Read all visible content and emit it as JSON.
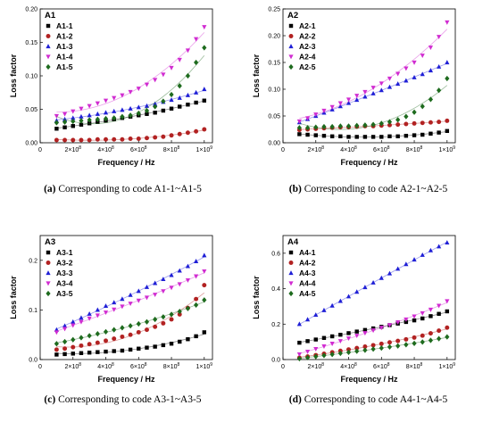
{
  "chart_data": [
    {
      "type": "scatter",
      "panel_title": "A1",
      "caption_letter": "(a)",
      "caption_text": " Corresponding to code A1-1~A1-5",
      "xlabel": "Frequency / Hz",
      "ylabel": "Loss factor",
      "xlim": [
        0,
        1050000000
      ],
      "ylim": [
        0,
        0.2
      ],
      "yticks": [
        "0.00",
        "0.05",
        "0.10",
        "0.15",
        "0.20"
      ],
      "ytick_values": [
        0,
        0.05,
        0.1,
        0.15,
        0.2
      ],
      "legend_placement": "top-left",
      "x": [
        100000000,
        150000000,
        200000000,
        250000000,
        300000000,
        350000000,
        400000000,
        450000000,
        500000000,
        550000000,
        600000000,
        650000000,
        700000000,
        750000000,
        800000000,
        850000000,
        900000000,
        950000000,
        1000000000
      ],
      "series": [
        {
          "name": "A1-1",
          "color": "#000000",
          "marker": "square",
          "values": [
            0.021,
            0.023,
            0.025,
            0.027,
            0.029,
            0.031,
            0.033,
            0.035,
            0.037,
            0.039,
            0.041,
            0.043,
            0.045,
            0.048,
            0.051,
            0.054,
            0.057,
            0.06,
            0.063
          ]
        },
        {
          "name": "A1-2",
          "color": "#b22222",
          "marker": "circle",
          "values": [
            0.004,
            0.004,
            0.004,
            0.004,
            0.004,
            0.005,
            0.005,
            0.005,
            0.005,
            0.006,
            0.006,
            0.007,
            0.008,
            0.009,
            0.011,
            0.013,
            0.015,
            0.017,
            0.02
          ]
        },
        {
          "name": "A1-3",
          "color": "#1f1fd6",
          "marker": "triangle-up",
          "values": [
            0.033,
            0.035,
            0.037,
            0.039,
            0.041,
            0.043,
            0.045,
            0.047,
            0.049,
            0.051,
            0.053,
            0.055,
            0.058,
            0.061,
            0.064,
            0.067,
            0.071,
            0.075,
            0.08
          ]
        },
        {
          "name": "A1-4",
          "color": "#d12cd1",
          "marker": "triangle-down",
          "values": [
            0.04,
            0.043,
            0.047,
            0.051,
            0.055,
            0.059,
            0.063,
            0.067,
            0.071,
            0.076,
            0.081,
            0.087,
            0.094,
            0.102,
            0.112,
            0.124,
            0.138,
            0.155,
            0.173
          ]
        },
        {
          "name": "A1-5",
          "color": "#1e6b1e",
          "marker": "diamond",
          "values": [
            0.03,
            0.031,
            0.032,
            0.033,
            0.034,
            0.035,
            0.036,
            0.037,
            0.039,
            0.041,
            0.044,
            0.048,
            0.054,
            0.062,
            0.072,
            0.085,
            0.1,
            0.12,
            0.142
          ]
        }
      ]
    },
    {
      "type": "scatter",
      "panel_title": "A2",
      "caption_letter": "(b)",
      "caption_text": " Corresponding to code A2-1~A2-5",
      "xlabel": "Frequency / Hz",
      "ylabel": "Loss factor",
      "xlim": [
        0,
        1050000000
      ],
      "ylim": [
        0,
        0.25
      ],
      "yticks": [
        "0.00",
        "0.05",
        "0.10",
        "0.15",
        "0.20",
        "0.25"
      ],
      "ytick_values": [
        0,
        0.05,
        0.1,
        0.15,
        0.2,
        0.25
      ],
      "legend_placement": "top-left",
      "x": [
        100000000,
        150000000,
        200000000,
        250000000,
        300000000,
        350000000,
        400000000,
        450000000,
        500000000,
        550000000,
        600000000,
        650000000,
        700000000,
        750000000,
        800000000,
        850000000,
        900000000,
        950000000,
        1000000000
      ],
      "series": [
        {
          "name": "A2-1",
          "color": "#000000",
          "marker": "square",
          "values": [
            0.016,
            0.015,
            0.014,
            0.013,
            0.012,
            0.012,
            0.011,
            0.011,
            0.011,
            0.011,
            0.011,
            0.012,
            0.012,
            0.013,
            0.014,
            0.015,
            0.017,
            0.019,
            0.022
          ]
        },
        {
          "name": "A2-2",
          "color": "#b22222",
          "marker": "circle",
          "values": [
            0.024,
            0.025,
            0.026,
            0.027,
            0.028,
            0.029,
            0.029,
            0.03,
            0.031,
            0.031,
            0.032,
            0.033,
            0.034,
            0.035,
            0.036,
            0.037,
            0.038,
            0.039,
            0.041
          ]
        },
        {
          "name": "A2-3",
          "color": "#1f1fd6",
          "marker": "triangle-up",
          "values": [
            0.038,
            0.044,
            0.05,
            0.056,
            0.062,
            0.068,
            0.074,
            0.08,
            0.086,
            0.092,
            0.098,
            0.104,
            0.11,
            0.116,
            0.122,
            0.128,
            0.135,
            0.142,
            0.15
          ]
        },
        {
          "name": "A2-4",
          "color": "#d12cd1",
          "marker": "triangle-down",
          "values": [
            0.04,
            0.046,
            0.053,
            0.06,
            0.067,
            0.074,
            0.081,
            0.088,
            0.095,
            0.103,
            0.111,
            0.12,
            0.129,
            0.139,
            0.15,
            0.163,
            0.178,
            0.198,
            0.225
          ]
        },
        {
          "name": "A2-5",
          "color": "#1e6b1e",
          "marker": "diamond",
          "values": [
            0.028,
            0.028,
            0.029,
            0.03,
            0.03,
            0.031,
            0.031,
            0.032,
            0.033,
            0.034,
            0.036,
            0.039,
            0.043,
            0.049,
            0.057,
            0.068,
            0.081,
            0.098,
            0.12
          ]
        }
      ]
    },
    {
      "type": "scatter",
      "panel_title": "A3",
      "caption_letter": "(c)",
      "caption_text": " Corresponding to code A3-1~A3-5",
      "xlabel": "Frequency / Hz",
      "ylabel": "Loss factor",
      "xlim": [
        0,
        1050000000
      ],
      "ylim": [
        0,
        0.25
      ],
      "yticks": [
        "0.0",
        "0.1",
        "0.2"
      ],
      "ytick_values": [
        0,
        0.1,
        0.2
      ],
      "legend_placement": "top-left",
      "x": [
        100000000,
        150000000,
        200000000,
        250000000,
        300000000,
        350000000,
        400000000,
        450000000,
        500000000,
        550000000,
        600000000,
        650000000,
        700000000,
        750000000,
        800000000,
        850000000,
        900000000,
        950000000,
        1000000000
      ],
      "series": [
        {
          "name": "A3-1",
          "color": "#000000",
          "marker": "square",
          "values": [
            0.01,
            0.011,
            0.012,
            0.013,
            0.014,
            0.015,
            0.016,
            0.017,
            0.018,
            0.02,
            0.022,
            0.024,
            0.026,
            0.029,
            0.032,
            0.036,
            0.041,
            0.047,
            0.055
          ]
        },
        {
          "name": "A3-2",
          "color": "#b22222",
          "marker": "circle",
          "values": [
            0.02,
            0.022,
            0.025,
            0.028,
            0.031,
            0.034,
            0.038,
            0.042,
            0.046,
            0.05,
            0.055,
            0.06,
            0.066,
            0.073,
            0.081,
            0.091,
            0.104,
            0.122,
            0.15
          ]
        },
        {
          "name": "A3-3",
          "color": "#1f1fd6",
          "marker": "triangle-up",
          "values": [
            0.06,
            0.068,
            0.076,
            0.084,
            0.092,
            0.1,
            0.108,
            0.115,
            0.122,
            0.13,
            0.138,
            0.146,
            0.154,
            0.162,
            0.17,
            0.179,
            0.188,
            0.198,
            0.21
          ]
        },
        {
          "name": "A3-4",
          "color": "#d12cd1",
          "marker": "triangle-down",
          "values": [
            0.055,
            0.062,
            0.069,
            0.076,
            0.083,
            0.089,
            0.095,
            0.101,
            0.107,
            0.113,
            0.119,
            0.125,
            0.131,
            0.138,
            0.145,
            0.152,
            0.16,
            0.168,
            0.178
          ]
        },
        {
          "name": "A3-5",
          "color": "#1e6b1e",
          "marker": "diamond",
          "values": [
            0.032,
            0.036,
            0.04,
            0.044,
            0.048,
            0.052,
            0.056,
            0.06,
            0.064,
            0.068,
            0.072,
            0.076,
            0.081,
            0.086,
            0.091,
            0.097,
            0.103,
            0.11,
            0.12
          ]
        }
      ]
    },
    {
      "type": "scatter",
      "panel_title": "A4",
      "caption_letter": "(d)",
      "caption_text": " Corresponding to code A4-1~A4-5",
      "xlabel": "Frequency / Hz",
      "ylabel": "Loss factor",
      "xlim": [
        0,
        1050000000
      ],
      "ylim": [
        0,
        0.7
      ],
      "yticks": [
        "0.0",
        "0.2",
        "0.4",
        "0.6"
      ],
      "ytick_values": [
        0,
        0.2,
        0.4,
        0.6
      ],
      "legend_placement": "top-left",
      "x": [
        100000000,
        150000000,
        200000000,
        250000000,
        300000000,
        350000000,
        400000000,
        450000000,
        500000000,
        550000000,
        600000000,
        650000000,
        700000000,
        750000000,
        800000000,
        850000000,
        900000000,
        950000000,
        1000000000
      ],
      "series": [
        {
          "name": "A4-1",
          "color": "#000000",
          "marker": "square",
          "values": [
            0.095,
            0.104,
            0.113,
            0.122,
            0.131,
            0.14,
            0.149,
            0.158,
            0.167,
            0.176,
            0.185,
            0.194,
            0.203,
            0.212,
            0.221,
            0.232,
            0.245,
            0.258,
            0.272
          ]
        },
        {
          "name": "A4-2",
          "color": "#b22222",
          "marker": "circle",
          "values": [
            0.01,
            0.017,
            0.025,
            0.033,
            0.041,
            0.049,
            0.057,
            0.065,
            0.073,
            0.081,
            0.089,
            0.097,
            0.105,
            0.114,
            0.124,
            0.135,
            0.148,
            0.163,
            0.18
          ]
        },
        {
          "name": "A4-3",
          "color": "#1f1fd6",
          "marker": "triangle-up",
          "values": [
            0.2,
            0.226,
            0.252,
            0.278,
            0.304,
            0.33,
            0.356,
            0.382,
            0.408,
            0.434,
            0.46,
            0.486,
            0.512,
            0.538,
            0.564,
            0.59,
            0.616,
            0.638,
            0.66
          ]
        },
        {
          "name": "A4-4",
          "color": "#d12cd1",
          "marker": "triangle-down",
          "values": [
            0.03,
            0.045,
            0.06,
            0.075,
            0.09,
            0.105,
            0.12,
            0.135,
            0.15,
            0.165,
            0.18,
            0.195,
            0.211,
            0.227,
            0.244,
            0.262,
            0.282,
            0.304,
            0.33
          ]
        },
        {
          "name": "A4-5",
          "color": "#1e6b1e",
          "marker": "diamond",
          "values": [
            0.005,
            0.011,
            0.017,
            0.023,
            0.029,
            0.035,
            0.041,
            0.047,
            0.053,
            0.059,
            0.065,
            0.071,
            0.077,
            0.084,
            0.091,
            0.099,
            0.108,
            0.118,
            0.128
          ]
        }
      ]
    }
  ],
  "xtick_labels": [
    {
      "mantissa": "2",
      "value": 200000000
    },
    {
      "mantissa": "4",
      "value": 400000000
    },
    {
      "mantissa": "6",
      "value": 600000000
    },
    {
      "mantissa": "8",
      "value": 800000000
    },
    {
      "mantissa": "1",
      "value": 1000000000
    }
  ],
  "xtick_origin": "0",
  "xtick_mult": "×10",
  "xtick_exp": [
    "8",
    "8",
    "8",
    "8",
    "9"
  ]
}
